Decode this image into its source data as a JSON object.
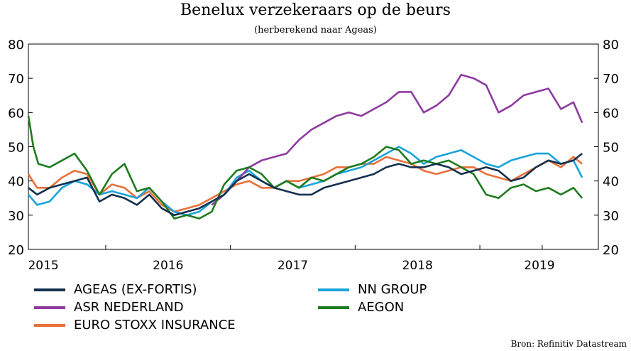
{
  "title": "Benelux verzekeraars op de beurs",
  "subtitle": "(herberekend naar Ageas)",
  "source": "Bron: Refinitiv Datastream",
  "colors": {
    "ageas": "#14304e",
    "nn": "#1aa3dc",
    "asr": "#8e3ba0",
    "aegon": "#1e7b1e",
    "stoxx": "#e8703a"
  },
  "chart_data": {
    "type": "line",
    "title": "Benelux verzekeraars op de beurs",
    "subtitle": "(herberekend naar Ageas)",
    "ylim": [
      20,
      80
    ],
    "yticks": [
      20,
      30,
      40,
      50,
      60,
      70,
      80
    ],
    "xlim": [
      2014.88,
      2019.45
    ],
    "x_tick_labels": [
      {
        "label": "2015",
        "x": 2015.0
      },
      {
        "label": "2016",
        "x": 2016.0
      },
      {
        "label": "2017",
        "x": 2017.0
      },
      {
        "label": "2018",
        "x": 2018.0
      },
      {
        "label": "2019",
        "x": 2019.0
      }
    ],
    "x_tick_marks": [
      2015.5,
      2016.5,
      2017.5,
      2018.5,
      2019.0
    ],
    "grid": false,
    "legend_position": "below",
    "series": [
      {
        "name": "AGEAS (EX-FORTIS)",
        "key": "ageas",
        "x": [
          2014.88,
          2014.95,
          2015.05,
          2015.15,
          2015.25,
          2015.35,
          2015.45,
          2015.55,
          2015.65,
          2015.75,
          2015.85,
          2015.95,
          2016.05,
          2016.15,
          2016.25,
          2016.35,
          2016.45,
          2016.55,
          2016.65,
          2016.75,
          2016.85,
          2016.95,
          2017.05,
          2017.15,
          2017.25,
          2017.35,
          2017.45,
          2017.55,
          2017.65,
          2017.75,
          2017.85,
          2017.95,
          2018.05,
          2018.15,
          2018.25,
          2018.35,
          2018.45,
          2018.55,
          2018.65,
          2018.75,
          2018.85,
          2018.95,
          2019.05,
          2019.15,
          2019.25,
          2019.32
        ],
        "y": [
          38,
          36,
          38,
          39,
          40,
          41,
          34,
          36,
          35,
          33,
          36,
          32,
          30,
          31,
          32,
          34,
          36,
          40,
          42,
          40,
          38,
          37,
          36,
          36,
          38,
          39,
          40,
          41,
          42,
          44,
          45,
          44,
          44,
          45,
          44,
          42,
          43,
          44,
          43,
          40,
          41,
          44,
          46,
          45,
          46,
          48
        ]
      },
      {
        "name": "NN GROUP",
        "key": "nn",
        "x": [
          2014.88,
          2014.95,
          2015.05,
          2015.15,
          2015.25,
          2015.35,
          2015.45,
          2015.55,
          2015.65,
          2015.75,
          2015.85,
          2015.95,
          2016.05,
          2016.15,
          2016.25,
          2016.35,
          2016.45,
          2016.55,
          2016.65,
          2016.75,
          2016.85,
          2016.95,
          2017.05,
          2017.15,
          2017.25,
          2017.35,
          2017.45,
          2017.55,
          2017.65,
          2017.75,
          2017.85,
          2017.95,
          2018.05,
          2018.15,
          2018.25,
          2018.35,
          2018.45,
          2018.55,
          2018.65,
          2018.75,
          2018.85,
          2018.95,
          2019.05,
          2019.15,
          2019.25,
          2019.32
        ],
        "y": [
          36,
          33,
          34,
          38,
          40,
          39,
          36,
          37,
          36,
          35,
          38,
          34,
          31,
          30,
          31,
          34,
          36,
          41,
          43,
          40,
          38,
          40,
          38,
          39,
          40,
          42,
          43,
          44,
          46,
          48,
          50,
          48,
          45,
          47,
          48,
          49,
          47,
          45,
          44,
          46,
          47,
          48,
          48,
          45,
          46,
          41
        ]
      },
      {
        "name": "ASR NEDERLAND",
        "key": "asr",
        "x": [
          2016.35,
          2016.45,
          2016.55,
          2016.65,
          2016.75,
          2016.85,
          2016.95,
          2017.05,
          2017.15,
          2017.25,
          2017.35,
          2017.45,
          2017.55,
          2017.65,
          2017.75,
          2017.85,
          2017.95,
          2018.05,
          2018.15,
          2018.25,
          2018.35,
          2018.45,
          2018.55,
          2018.65,
          2018.75,
          2018.85,
          2018.95,
          2019.05,
          2019.15,
          2019.25,
          2019.32
        ],
        "y": [
          33,
          36,
          40,
          44,
          46,
          47,
          48,
          52,
          55,
          57,
          59,
          60,
          59,
          61,
          63,
          66,
          66,
          60,
          62,
          65,
          71,
          70,
          68,
          60,
          62,
          65,
          66,
          67,
          61,
          63,
          57
        ]
      },
      {
        "name": "AEGON",
        "key": "aegon",
        "x": [
          2014.88,
          2014.92,
          2014.96,
          2015.05,
          2015.15,
          2015.25,
          2015.35,
          2015.45,
          2015.55,
          2015.65,
          2015.75,
          2015.85,
          2015.95,
          2016.05,
          2016.15,
          2016.25,
          2016.35,
          2016.45,
          2016.55,
          2016.65,
          2016.75,
          2016.85,
          2016.95,
          2017.05,
          2017.15,
          2017.25,
          2017.35,
          2017.45,
          2017.55,
          2017.65,
          2017.75,
          2017.85,
          2017.95,
          2018.05,
          2018.15,
          2018.25,
          2018.35,
          2018.45,
          2018.55,
          2018.65,
          2018.75,
          2018.85,
          2018.95,
          2019.05,
          2019.15,
          2019.25,
          2019.32
        ],
        "y": [
          59,
          50,
          45,
          44,
          46,
          48,
          43,
          36,
          42,
          45,
          37,
          38,
          34,
          29,
          30,
          29,
          31,
          39,
          43,
          44,
          42,
          38,
          40,
          38,
          41,
          40,
          42,
          44,
          45,
          47,
          50,
          49,
          45,
          46,
          45,
          46,
          44,
          42,
          36,
          35,
          38,
          39,
          37,
          38,
          36,
          38,
          35
        ]
      },
      {
        "name": "EURO STOXX INSURANCE",
        "key": "stoxx",
        "x": [
          2014.88,
          2014.95,
          2015.05,
          2015.15,
          2015.25,
          2015.35,
          2015.45,
          2015.55,
          2015.65,
          2015.75,
          2015.85,
          2015.95,
          2016.05,
          2016.15,
          2016.25,
          2016.35,
          2016.45,
          2016.55,
          2016.65,
          2016.75,
          2016.85,
          2016.95,
          2017.05,
          2017.15,
          2017.25,
          2017.35,
          2017.45,
          2017.55,
          2017.65,
          2017.75,
          2017.85,
          2017.95,
          2018.05,
          2018.15,
          2018.25,
          2018.35,
          2018.45,
          2018.55,
          2018.65,
          2018.75,
          2018.85,
          2018.95,
          2019.05,
          2019.15,
          2019.25,
          2019.32
        ],
        "y": [
          42,
          38,
          38,
          41,
          43,
          42,
          36,
          39,
          38,
          35,
          37,
          33,
          31,
          32,
          33,
          35,
          37,
          39,
          40,
          38,
          38,
          40,
          40,
          41,
          42,
          44,
          44,
          45,
          45,
          47,
          46,
          45,
          43,
          42,
          43,
          44,
          44,
          42,
          41,
          40,
          42,
          44,
          46,
          44,
          47,
          45
        ]
      }
    ]
  },
  "legend": [
    {
      "label": "AGEAS (EX-FORTIS)",
      "key": "ageas"
    },
    {
      "label": "NN GROUP",
      "key": "nn"
    },
    {
      "label": "ASR NEDERLAND",
      "key": "asr"
    },
    {
      "label": "AEGON",
      "key": "aegon"
    },
    {
      "label": "EURO STOXX INSURANCE",
      "key": "stoxx"
    }
  ]
}
